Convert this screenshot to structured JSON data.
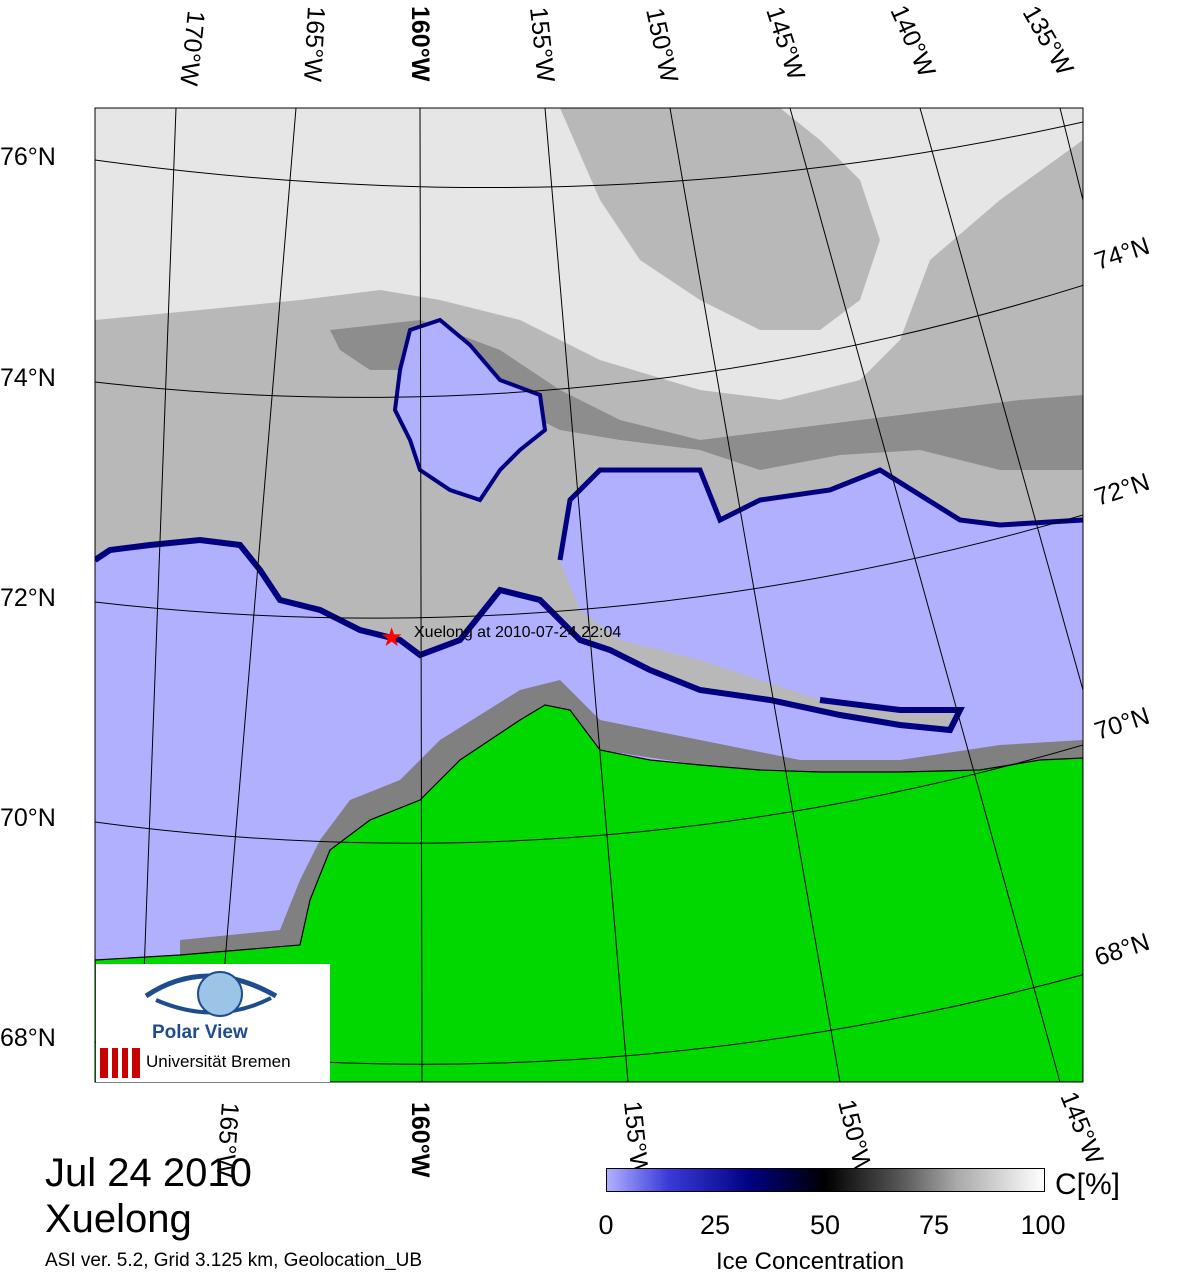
{
  "map": {
    "latitude_labels_left": [
      "76°N",
      "74°N",
      "72°N",
      "70°N",
      "68°N"
    ],
    "latitude_labels_right": [
      "74°N",
      "72°N",
      "70°N",
      "68°N"
    ],
    "longitude_labels_top": [
      "170°W",
      "165°W",
      "160°W",
      "155°W",
      "150°W",
      "145°W",
      "140°W",
      "135°W"
    ],
    "longitude_labels_bottom": [
      "165°W",
      "160°W",
      "155°W",
      "150°W",
      "145°W"
    ],
    "marker": {
      "label": "Xuelong at 2010-07-24 22:04",
      "symbol": "★",
      "color": "#ff0000"
    },
    "colors": {
      "open_water": "#b0b0ff",
      "land": "#00d800",
      "coast_mask": "#808080",
      "ice_edge": "#000080"
    }
  },
  "caption": {
    "date": "Jul 24 2010",
    "vessel": "Xuelong",
    "info": "ASI ver. 5.2,  Grid 3.125 km, Geolocation_UB"
  },
  "colorbar": {
    "ticks": [
      "0",
      "25",
      "50",
      "75",
      "100"
    ],
    "title": "Ice Concentration",
    "unit": "C[%]"
  },
  "logo": {
    "name": "Polar View",
    "institution": "Universität Bremen"
  }
}
